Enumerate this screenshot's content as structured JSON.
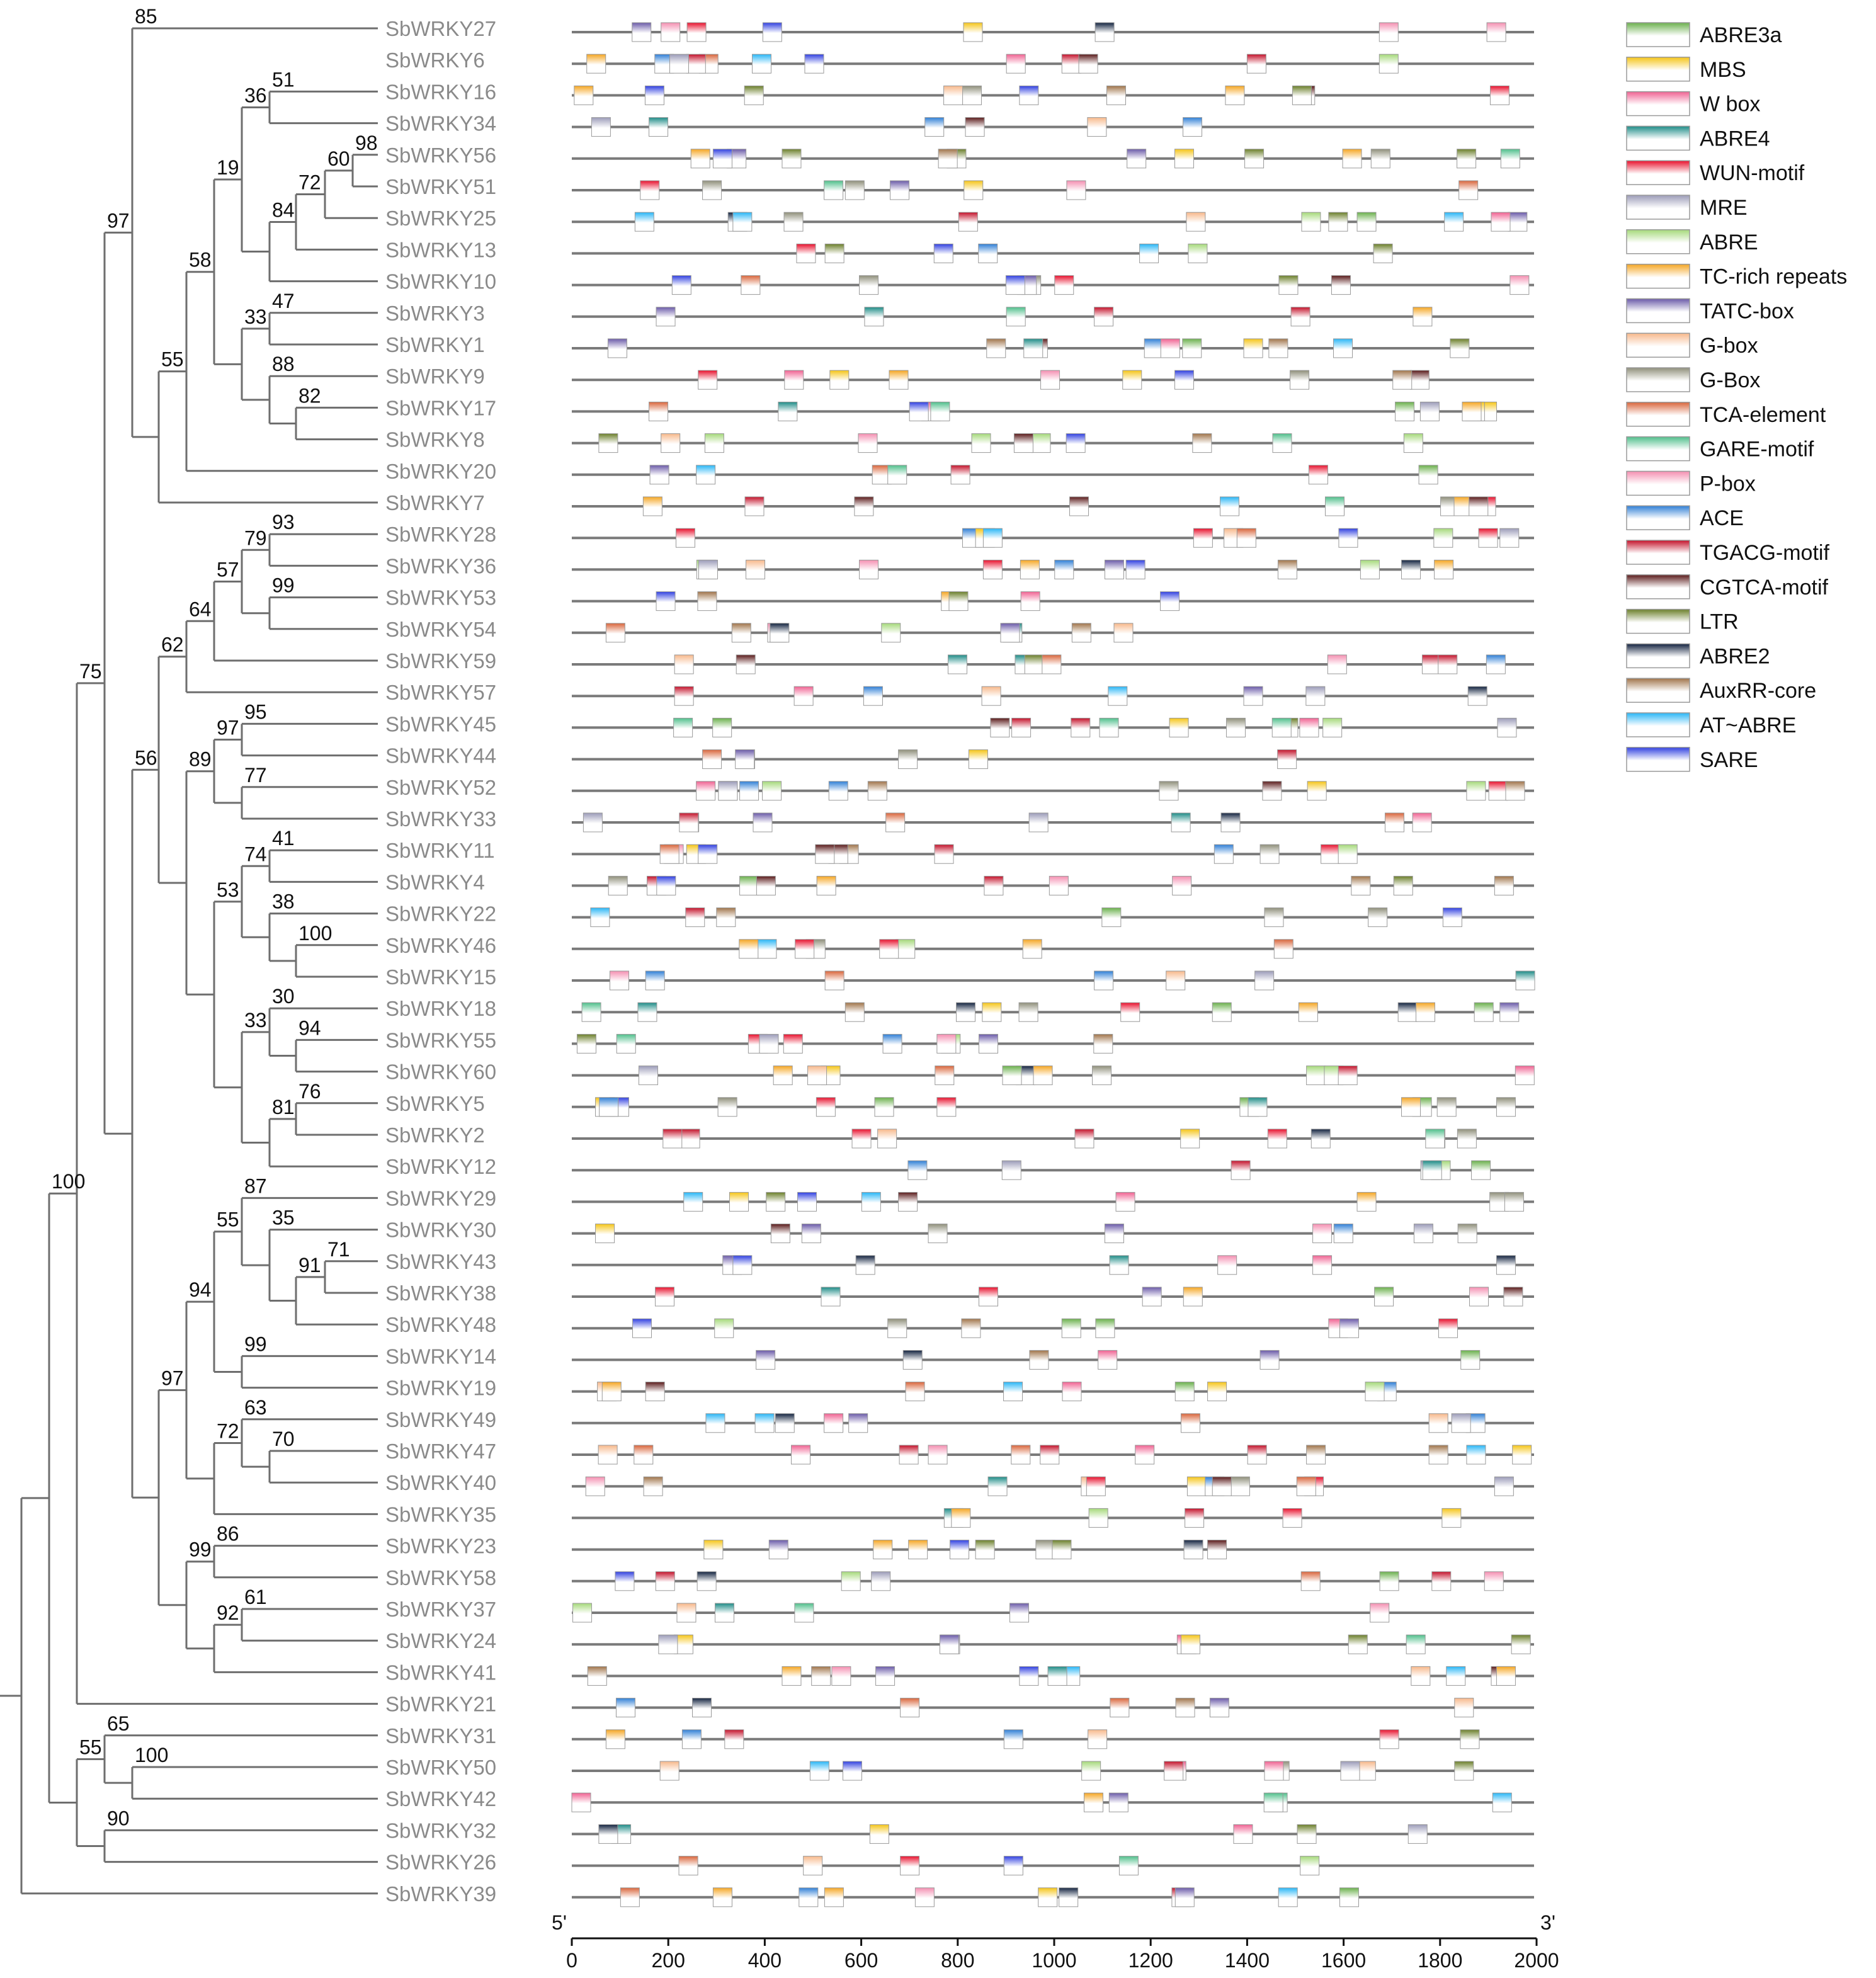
{
  "figure": {
    "end_labels": {
      "five_prime": "5'",
      "three_prime": "3'"
    },
    "axis": {
      "min": 0,
      "max": 2000,
      "ticks": [
        "0",
        "200",
        "400",
        "600",
        "800",
        "1000",
        "1200",
        "1400",
        "1600",
        "1800",
        "2000"
      ]
    }
  },
  "genes": [
    "SbWRKY27",
    "SbWRKY6",
    "SbWRKY16",
    "SbWRKY34",
    "SbWRKY56",
    "SbWRKY51",
    "SbWRKY25",
    "SbWRKY13",
    "SbWRKY10",
    "SbWRKY3",
    "SbWRKY1",
    "SbWRKY9",
    "SbWRKY17",
    "SbWRKY8",
    "SbWRKY20",
    "SbWRKY7",
    "SbWRKY28",
    "SbWRKY36",
    "SbWRKY53",
    "SbWRKY54",
    "SbWRKY59",
    "SbWRKY57",
    "SbWRKY45",
    "SbWRKY44",
    "SbWRKY52",
    "SbWRKY33",
    "SbWRKY11",
    "SbWRKY4",
    "SbWRKY22",
    "SbWRKY46",
    "SbWRKY15",
    "SbWRKY18",
    "SbWRKY55",
    "SbWRKY60",
    "SbWRKY5",
    "SbWRKY2",
    "SbWRKY12",
    "SbWRKY29",
    "SbWRKY30",
    "SbWRKY43",
    "SbWRKY38",
    "SbWRKY48",
    "SbWRKY14",
    "SbWRKY19",
    "SbWRKY49",
    "SbWRKY47",
    "SbWRKY40",
    "SbWRKY35",
    "SbWRKY23",
    "SbWRKY58",
    "SbWRKY37",
    "SbWRKY24",
    "SbWRKY41",
    "SbWRKY21",
    "SbWRKY31",
    "SbWRKY50",
    "SbWRKY42",
    "SbWRKY32",
    "SbWRKY26",
    "SbWRKY39"
  ],
  "bootstrap_values": [
    "51",
    "98",
    "60",
    "72",
    "36",
    "84",
    "19",
    "47",
    "33",
    "88",
    "82",
    "58",
    "55",
    "85",
    "93",
    "79",
    "99",
    "57",
    "64",
    "95",
    "97",
    "77",
    "41",
    "74",
    "38",
    "100",
    "53",
    "30",
    "94",
    "33",
    "76",
    "81",
    "89",
    "62",
    "71",
    "91",
    "35",
    "87",
    "99",
    "55",
    "70",
    "63",
    "72",
    "94",
    "61",
    "86",
    "92",
    "99",
    "97",
    "56",
    "97",
    "75",
    "100",
    "65",
    "90",
    "55",
    "100"
  ],
  "legend": [
    {
      "name": "ABRE3a",
      "color": "#6ab04c"
    },
    {
      "name": "MBS",
      "color": "#f5c518"
    },
    {
      "name": "W box",
      "color": "#f06292"
    },
    {
      "name": "ABRE4",
      "color": "#1e8c87"
    },
    {
      "name": "WUN-motif",
      "color": "#e8112d"
    },
    {
      "name": "MRE",
      "color": "#9b9bb8"
    },
    {
      "name": "ABRE",
      "color": "#a5d97a"
    },
    {
      "name": "TC-rich repeats",
      "color": "#f5a623"
    },
    {
      "name": "TATC-box",
      "color": "#6a5aa8"
    },
    {
      "name": "G-box",
      "color": "#f7b88b"
    },
    {
      "name": "G-Box",
      "color": "#8f8f7a"
    },
    {
      "name": "TCA-element",
      "color": "#d9653b"
    },
    {
      "name": "GARE-motif",
      "color": "#4fbf8b"
    },
    {
      "name": "P-box",
      "color": "#f48fb1"
    },
    {
      "name": "ACE",
      "color": "#2f7fd6"
    },
    {
      "name": "TGACG-motif",
      "color": "#c4122a"
    },
    {
      "name": "CGTCA-motif",
      "color": "#5a1a1a"
    },
    {
      "name": "LTR",
      "color": "#6b7f2a"
    },
    {
      "name": "ABRE2",
      "color": "#12223f"
    },
    {
      "name": "AuxRR-core",
      "color": "#a0744a"
    },
    {
      "name": "AT~ABRE",
      "color": "#29b6f6"
    },
    {
      "name": "SARE",
      "color": "#3040e0"
    }
  ]
}
